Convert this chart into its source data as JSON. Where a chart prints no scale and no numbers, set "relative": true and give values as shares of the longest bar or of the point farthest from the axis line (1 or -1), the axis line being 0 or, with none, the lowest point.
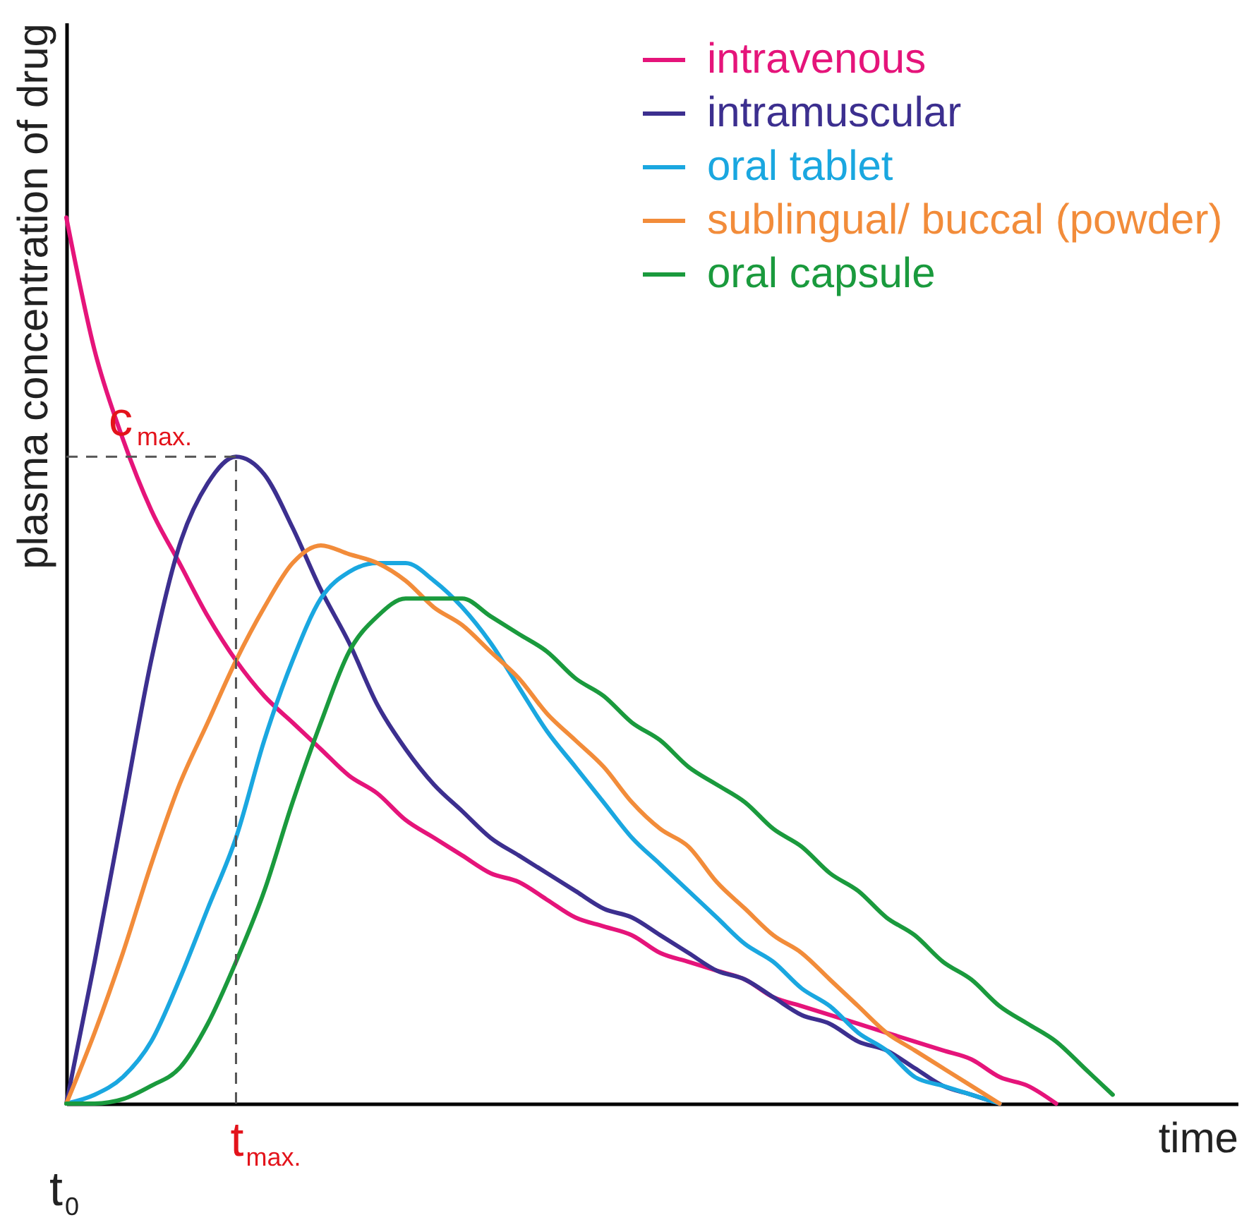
{
  "chart_data": {
    "type": "line",
    "relative": true,
    "xlabel": "time",
    "ylabel": "plasma concentration of drug",
    "categories": [
      null,
      null,
      null,
      null,
      null,
      null,
      null,
      null,
      null,
      null,
      null,
      null,
      null,
      null,
      null,
      null,
      null,
      null,
      null,
      null,
      null,
      null,
      null,
      null,
      null,
      null,
      null,
      null,
      null,
      null,
      null,
      null,
      null,
      null,
      null,
      null,
      null,
      null,
      null
    ],
    "series": [
      {
        "name": "intravenous",
        "color": "#e5147a",
        "values": [
          1.0,
          0.85,
          0.75,
          0.67,
          0.61,
          0.55,
          0.5,
          0.46,
          0.43,
          0.4,
          0.37,
          0.35,
          0.32,
          0.3,
          0.28,
          0.26,
          0.25,
          0.23,
          0.21,
          0.2,
          0.19,
          0.17,
          0.16,
          0.15,
          0.14,
          0.12,
          0.11,
          0.1,
          0.09,
          0.08,
          0.07,
          0.06,
          0.05,
          0.03,
          0.02,
          0,
          null,
          null,
          null
        ]
      },
      {
        "name": "intramuscular",
        "color": "#3c2f8f",
        "values": [
          0,
          0.16,
          0.33,
          0.5,
          0.63,
          0.7,
          0.73,
          0.71,
          0.65,
          0.58,
          0.52,
          0.45,
          0.4,
          0.36,
          0.33,
          0.3,
          0.28,
          0.26,
          0.24,
          0.22,
          0.21,
          0.19,
          0.17,
          0.15,
          0.14,
          0.12,
          0.1,
          0.09,
          0.07,
          0.06,
          0.04,
          0.02,
          0.01,
          0,
          null,
          null,
          null,
          null,
          null
        ]
      },
      {
        "name": "oral tablet",
        "color": "#1aa7e0",
        "values": [
          0,
          0.01,
          0.03,
          0.07,
          0.14,
          0.22,
          0.3,
          0.41,
          0.5,
          0.57,
          0.6,
          0.61,
          0.61,
          0.59,
          0.56,
          0.52,
          0.47,
          0.42,
          0.38,
          0.34,
          0.3,
          0.27,
          0.24,
          0.21,
          0.18,
          0.16,
          0.13,
          0.11,
          0.08,
          0.06,
          0.03,
          0.02,
          0.01,
          0,
          null,
          null,
          null,
          null,
          null
        ]
      },
      {
        "name": "sublingual/ buccal (powder)",
        "color": "#f28c3a",
        "values": [
          0,
          0.08,
          0.17,
          0.27,
          0.36,
          0.43,
          0.5,
          0.56,
          0.61,
          0.63,
          0.62,
          0.61,
          0.59,
          0.56,
          0.54,
          0.51,
          0.48,
          0.44,
          0.41,
          0.38,
          0.34,
          0.31,
          0.29,
          0.25,
          0.22,
          0.19,
          0.17,
          0.14,
          0.11,
          0.08,
          0.06,
          0.04,
          0.02,
          0,
          null,
          null,
          null,
          null,
          null
        ]
      },
      {
        "name": "oral capsule",
        "color": "#1a9a3d",
        "values": [
          0,
          0,
          0.005,
          0.02,
          0.04,
          0.09,
          0.16,
          0.24,
          0.34,
          0.43,
          0.51,
          0.55,
          0.57,
          0.57,
          0.57,
          0.55,
          0.53,
          0.51,
          0.48,
          0.46,
          0.43,
          0.41,
          0.38,
          0.36,
          0.34,
          0.31,
          0.29,
          0.26,
          0.24,
          0.21,
          0.19,
          0.16,
          0.14,
          0.11,
          0.09,
          0.07,
          0.04,
          0.01,
          null
        ]
      }
    ],
    "ref_lines": [
      {
        "axis": "y",
        "value": 0.73,
        "label": "c$_{max.}$",
        "color": "#555555",
        "line_style": "dashed"
      }
    ],
    "annotations": [
      "t$_{0}$",
      "t$_{max.}$"
    ],
    "legend": "top right",
    "grid": false
  }
}
